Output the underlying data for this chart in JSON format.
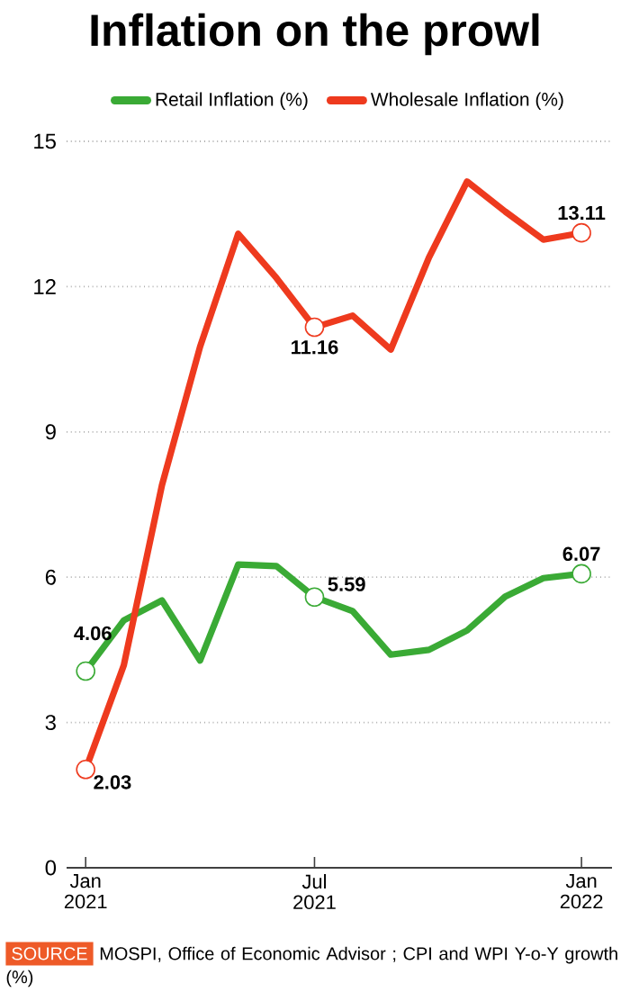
{
  "chart_data": {
    "type": "line",
    "title": "Inflation on the prowl",
    "categories": [
      "Jan 2021",
      null,
      null,
      null,
      null,
      null,
      "Jul 2021",
      null,
      null,
      null,
      null,
      null,
      null,
      "Jan 2022"
    ],
    "ylim": [
      0,
      15
    ],
    "yticks": [
      0,
      3,
      6,
      9,
      12,
      15
    ],
    "series": [
      {
        "name": "Retail Inflation (%)",
        "color": "#3aaa35",
        "values": [
          4.06,
          5.11,
          5.52,
          4.28,
          6.26,
          6.23,
          5.59,
          5.3,
          4.4,
          4.5,
          4.9,
          5.6,
          5.98,
          6.07
        ],
        "value_labels": [
          "4.06",
          null,
          null,
          null,
          null,
          null,
          "5.59",
          null,
          null,
          null,
          null,
          null,
          null,
          "6.07"
        ]
      },
      {
        "name": "Wholesale Inflation (%)",
        "color": "#ee3a1e",
        "values": [
          2.03,
          4.18,
          7.9,
          10.76,
          13.09,
          12.18,
          11.16,
          11.4,
          10.7,
          12.6,
          14.17,
          13.55,
          12.97,
          13.11
        ],
        "value_labels": [
          "2.03",
          null,
          null,
          null,
          null,
          null,
          "11.16",
          null,
          null,
          null,
          null,
          null,
          null,
          "13.11"
        ]
      }
    ],
    "grid": "y",
    "legend": "top",
    "annotations": [
      "SOURCE",
      "MOSPI, Office of Economic Advisor ; CPI and WPI Y-o-Y growth (%)"
    ]
  }
}
